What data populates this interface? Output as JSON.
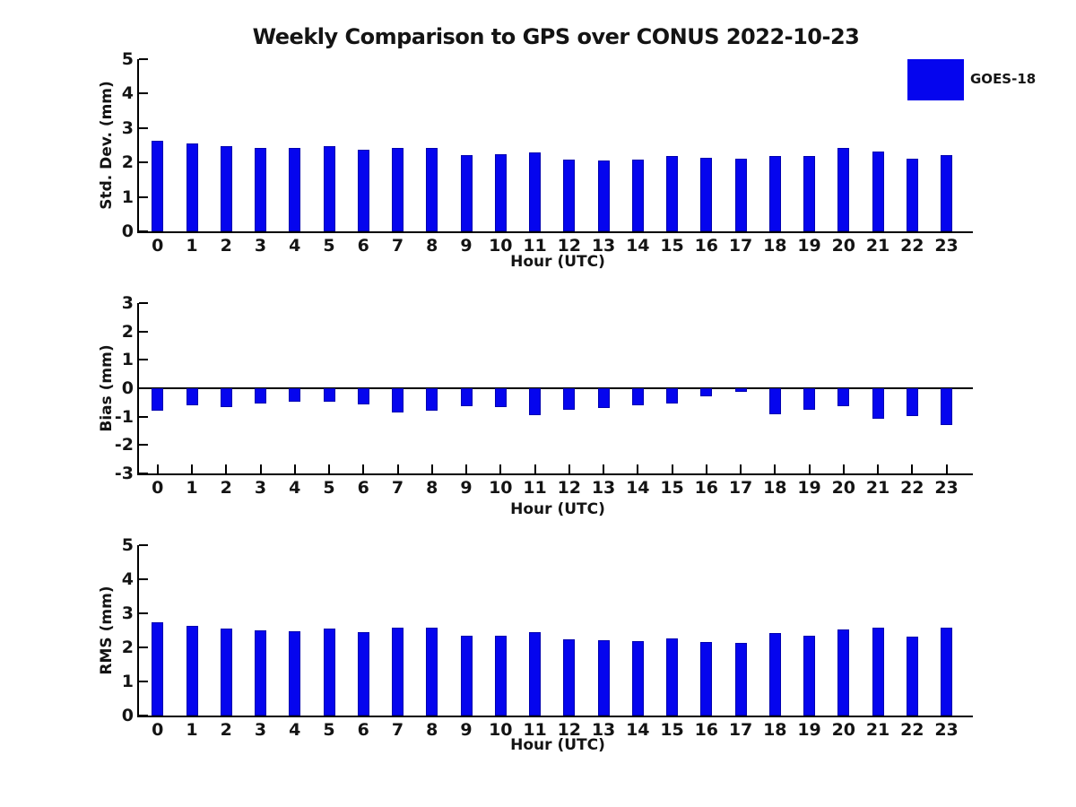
{
  "page": {
    "title": "Weekly Comparison to GPS over CONUS 2022-10-23",
    "background": "#ffffff"
  },
  "legend": {
    "label": "GOES-18",
    "swatch_color": "#0505ee",
    "position": "upper-right"
  },
  "chart_data": [
    {
      "type": "bar",
      "title": "",
      "ylabel": "Std. Dev. (mm)",
      "xlabel": "Hour (UTC)",
      "ylim": [
        0,
        5
      ],
      "yticks": [
        0,
        1,
        2,
        3,
        4,
        5
      ],
      "grid": false,
      "bar_color": "#0505ee",
      "categories": [
        "0",
        "1",
        "2",
        "3",
        "4",
        "5",
        "6",
        "7",
        "8",
        "9",
        "10",
        "11",
        "12",
        "13",
        "14",
        "15",
        "16",
        "17",
        "18",
        "19",
        "20",
        "21",
        "22",
        "23"
      ],
      "series": [
        {
          "name": "GOES-18",
          "values": [
            2.63,
            2.56,
            2.48,
            2.41,
            2.43,
            2.47,
            2.38,
            2.43,
            2.43,
            2.22,
            2.25,
            2.28,
            2.09,
            2.06,
            2.09,
            2.19,
            2.14,
            2.11,
            2.2,
            2.18,
            2.42,
            2.32,
            2.11,
            2.22
          ]
        }
      ]
    },
    {
      "type": "bar",
      "title": "",
      "ylabel": "Bias (mm)",
      "xlabel": "Hour (UTC)",
      "ylim": [
        -3,
        3
      ],
      "yticks": [
        3,
        2,
        1,
        0,
        -1,
        -2,
        -3
      ],
      "grid": false,
      "bar_color": "#0505ee",
      "categories": [
        "0",
        "1",
        "2",
        "3",
        "4",
        "5",
        "6",
        "7",
        "8",
        "9",
        "10",
        "11",
        "12",
        "13",
        "14",
        "15",
        "16",
        "17",
        "18",
        "19",
        "20",
        "21",
        "22",
        "23"
      ],
      "series": [
        {
          "name": "GOES-18",
          "values": [
            -0.78,
            -0.6,
            -0.65,
            -0.53,
            -0.46,
            -0.46,
            -0.57,
            -0.86,
            -0.79,
            -0.64,
            -0.66,
            -0.94,
            -0.77,
            -0.68,
            -0.6,
            -0.54,
            -0.29,
            -0.13,
            -0.91,
            -0.76,
            -0.62,
            -1.07,
            -0.97,
            -1.31
          ]
        }
      ]
    },
    {
      "type": "bar",
      "title": "",
      "ylabel": "RMS (mm)",
      "xlabel": "Hour (UTC)",
      "ylim": [
        0,
        5
      ],
      "yticks": [
        0,
        1,
        2,
        3,
        4,
        5
      ],
      "grid": false,
      "bar_color": "#0505ee",
      "categories": [
        "0",
        "1",
        "2",
        "3",
        "4",
        "5",
        "6",
        "7",
        "8",
        "9",
        "10",
        "11",
        "12",
        "13",
        "14",
        "15",
        "16",
        "17",
        "18",
        "19",
        "20",
        "21",
        "22",
        "23"
      ],
      "series": [
        {
          "name": "GOES-18",
          "values": [
            2.75,
            2.64,
            2.56,
            2.49,
            2.48,
            2.54,
            2.46,
            2.59,
            2.57,
            2.33,
            2.35,
            2.45,
            2.24,
            2.2,
            2.18,
            2.27,
            2.17,
            2.13,
            2.41,
            2.34,
            2.53,
            2.58,
            2.31,
            2.57
          ]
        }
      ]
    }
  ]
}
